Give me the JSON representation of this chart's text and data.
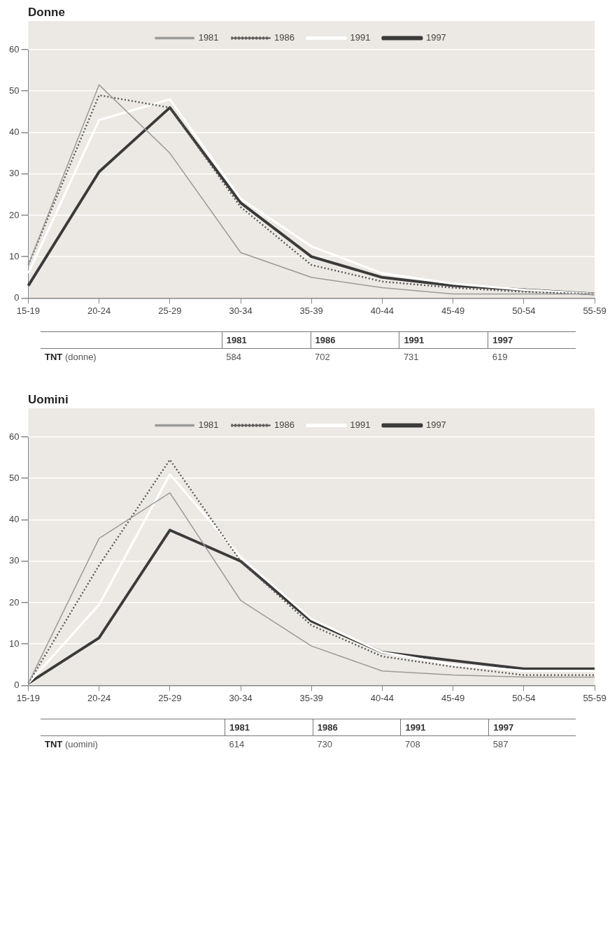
{
  "chart_data": [
    {
      "type": "line",
      "title": "Donne",
      "categories": [
        "15-19",
        "20-24",
        "25-29",
        "30-34",
        "35-39",
        "40-44",
        "45-49",
        "50-54",
        "55-59"
      ],
      "series": [
        {
          "name": "1981",
          "color": "#9a9a9a",
          "line_style": "solid",
          "values": [
            8,
            51.5,
            35,
            11,
            5,
            2.5,
            1,
            1,
            1
          ]
        },
        {
          "name": "1986",
          "color": "#555555",
          "line_style": "dotted",
          "values": [
            8,
            49,
            46,
            22,
            8,
            4,
            2.5,
            1.5,
            1
          ]
        },
        {
          "name": "1991",
          "color": "#ffffff",
          "line_style": "solid",
          "values": [
            6,
            43,
            48,
            24,
            12.5,
            6,
            3.5,
            2,
            1
          ]
        },
        {
          "name": "1997",
          "color": "#3a3a3a",
          "line_style": "solid",
          "values": [
            3,
            30.5,
            46,
            23,
            10,
            5,
            3,
            2,
            1
          ]
        }
      ],
      "ylim": [
        0,
        60
      ],
      "yticks": [
        0,
        10,
        20,
        30,
        40,
        50,
        60
      ],
      "grid": "y",
      "legend": "top",
      "marker": "none"
    },
    {
      "type": "other",
      "ylabel": "TNT (donne)",
      "categories": [
        "1981",
        "1986",
        "1991",
        "1997"
      ],
      "values": [
        584,
        702,
        731,
        619
      ],
      "data_labels": true
    },
    {
      "type": "line",
      "title": "Uomini",
      "categories": [
        "15-19",
        "20-24",
        "25-29",
        "30-34",
        "35-39",
        "40-44",
        "45-49",
        "50-54",
        "55-59"
      ],
      "series": [
        {
          "name": "1981",
          "color": "#9a9a9a",
          "line_style": "solid",
          "values": [
            0.5,
            35.5,
            46.5,
            20.5,
            9.5,
            3.5,
            2.5,
            2,
            2
          ]
        },
        {
          "name": "1986",
          "color": "#555555",
          "line_style": "dotted",
          "values": [
            0.5,
            29,
            54.5,
            30,
            14.5,
            7,
            4.5,
            2.5,
            2.5
          ]
        },
        {
          "name": "1991",
          "color": "#ffffff",
          "line_style": "solid",
          "values": [
            0.5,
            19.5,
            51,
            31,
            16,
            8,
            5,
            3.5,
            3.5
          ]
        },
        {
          "name": "1997",
          "color": "#3a3a3a",
          "line_style": "solid",
          "values": [
            0.5,
            11.5,
            37.5,
            30,
            15.5,
            8,
            6,
            4,
            4
          ]
        }
      ],
      "ylim": [
        0,
        60
      ],
      "yticks": [
        0,
        10,
        20,
        30,
        40,
        50,
        60
      ],
      "grid": "y",
      "legend": "top",
      "marker": "none"
    },
    {
      "type": "other",
      "ylabel": "TNT (uomini)",
      "categories": [
        "1981",
        "1986",
        "1991",
        "1997"
      ],
      "values": [
        614,
        730,
        708,
        587
      ],
      "data_labels": true
    }
  ]
}
